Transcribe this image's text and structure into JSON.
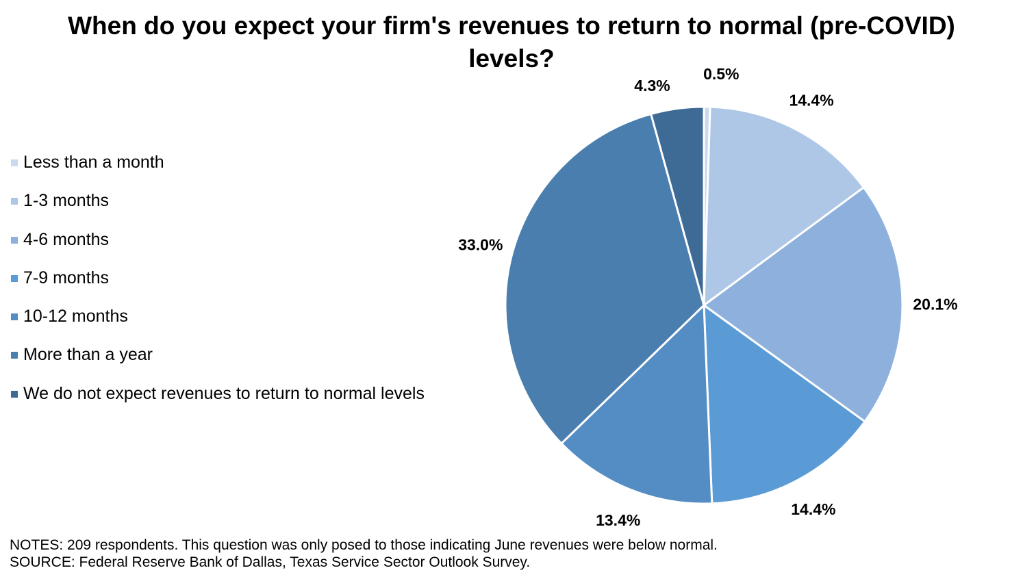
{
  "title_lines": [
    "When do you expect your firm's revenues to return to normal (pre-COVID)",
    "levels?"
  ],
  "chart_data": {
    "type": "pie",
    "title": "When do you expect your firm's revenues to return to normal (pre-COVID) levels?",
    "unit": "%",
    "start_angle_deg": 0,
    "direction": "clockwise",
    "legend_position": "left",
    "slices": [
      {
        "label": "Less than a month",
        "value": 0.5,
        "display": "0.5%",
        "color": "#c9d9ee"
      },
      {
        "label": "1-3 months",
        "value": 14.4,
        "display": "14.4%",
        "color": "#aec7e6"
      },
      {
        "label": "4-6 months",
        "value": 20.1,
        "display": "20.1%",
        "color": "#8db1dc"
      },
      {
        "label": "7-9 months",
        "value": 14.4,
        "display": "14.4%",
        "color": "#5b9bd5"
      },
      {
        "label": "10-12 months",
        "value": 13.4,
        "display": "13.4%",
        "color": "#548dc4"
      },
      {
        "label": "More than a year",
        "value": 33.0,
        "display": "33.0%",
        "color": "#4a7eae"
      },
      {
        "label": "We do not expect revenues to return to normal levels",
        "value": 4.3,
        "display": "4.3%",
        "color": "#3e6b96"
      }
    ]
  },
  "notes": [
    "NOTES: 209 respondents. This question was only posed to those indicating June revenues were below normal.",
    "SOURCE: Federal Reserve Bank of Dallas, Texas Service Sector Outlook Survey."
  ]
}
